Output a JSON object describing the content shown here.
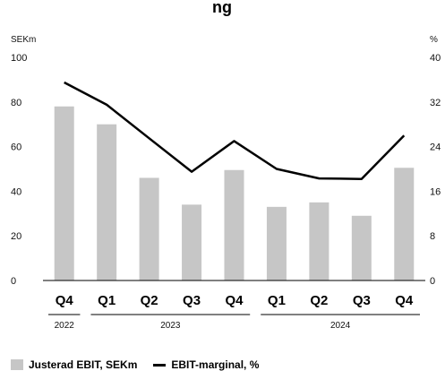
{
  "chart_data": {
    "type": "bar",
    "title": "ng",
    "categories": [
      "Q4",
      "Q1",
      "Q2",
      "Q3",
      "Q4",
      "Q1",
      "Q2",
      "Q3",
      "Q4"
    ],
    "year_groups": [
      {
        "label": "2022",
        "start": 0,
        "end": 0
      },
      {
        "label": "2023",
        "start": 1,
        "end": 4
      },
      {
        "label": "2024",
        "start": 5,
        "end": 8
      }
    ],
    "y_left": {
      "unit": "SEKm",
      "ylim": [
        0,
        100
      ],
      "ticks": [
        0,
        20,
        40,
        60,
        80,
        100
      ]
    },
    "y_right": {
      "unit": "%",
      "ylim": [
        0,
        40
      ],
      "ticks": [
        0,
        8,
        16,
        24,
        32,
        40
      ]
    },
    "series": [
      {
        "name": "Justerad EBIT, SEKm",
        "type": "bar",
        "axis": "left",
        "color": "#c6c6c6",
        "values": [
          78,
          70,
          46,
          34,
          49.5,
          33,
          35,
          29,
          50.5
        ]
      },
      {
        "name": "EBIT-marginal, %",
        "type": "line",
        "axis": "right",
        "color": "#000000",
        "values": [
          35.5,
          31.5,
          25.5,
          19.5,
          25,
          20,
          18.3,
          18.2,
          26
        ]
      }
    ],
    "grid": false,
    "legend_position": "bottom-left"
  }
}
